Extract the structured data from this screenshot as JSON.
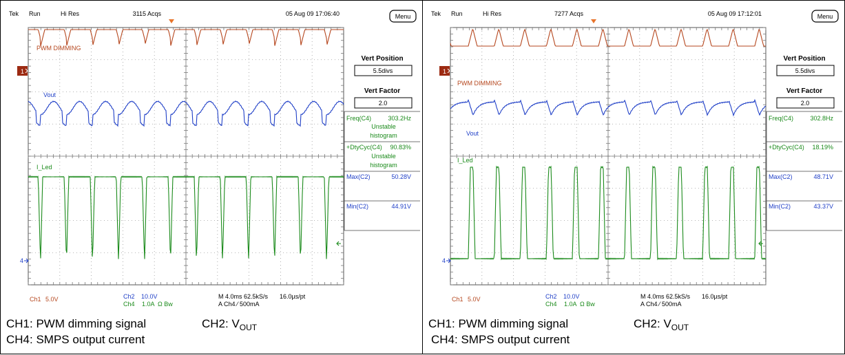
{
  "panels": [
    {
      "header": {
        "brand": "Tek",
        "mode": "Run",
        "acq_mode": "Hi Res",
        "acqs": "3115 Acqs",
        "datetime": "05 Aug 09 17:06:40"
      },
      "menu_label": "Menu",
      "side": {
        "vert_position_label": "Vert Position",
        "vert_position_value": "5.5divs",
        "vert_factor_label": "Vert Factor",
        "vert_factor_value": "2.0",
        "freq_label": "Freq(C4)",
        "freq_value": "303.2Hz",
        "freq_note1": "Unstable",
        "freq_note2": "histogram",
        "duty_label": "+DtyCyc(C4)",
        "duty_value": "90.83%",
        "duty_note1": "Unstable",
        "duty_note2": "histogram",
        "max_label": "Max(C2)",
        "max_value": "50.28V",
        "min_label": "Min(C2)",
        "min_value": "44.91V"
      },
      "trace_labels": {
        "pwm": "PWM DIMMING",
        "vout": "Vout",
        "iled": "I_Led"
      },
      "channel_markers": {
        "ch1": "1",
        "ch4": "4"
      },
      "footer": {
        "ch1": "Ch1",
        "ch1_scale": "5.0V",
        "ch2": "Ch2",
        "ch2_scale": "10.0V",
        "ch4": "Ch4",
        "ch4_scale": "1.0A",
        "bw": "Ω Bw",
        "timebase": "M 4.0ms 62.5kS/s",
        "resolution": "16.0µs/pt",
        "trigger": "A  Ch4  ⁄  500mA"
      },
      "caption": {
        "line1a": "CH1: PWM dimming signal",
        "line1b_prefix": "CH2: V",
        "line1b_sub": "OUT",
        "line2": "CH4: SMPS output current"
      }
    },
    {
      "header": {
        "brand": "Tek",
        "mode": "Run",
        "acq_mode": "Hi Res",
        "acqs": "7277 Acqs",
        "datetime": "05 Aug 09 17:12:01"
      },
      "menu_label": "Menu",
      "side": {
        "vert_position_label": "Vert Position",
        "vert_position_value": "5.5divs",
        "vert_factor_label": "Vert Factor",
        "vert_factor_value": "2.0",
        "freq_label": "Freq(C4)",
        "freq_value": "302.8Hz",
        "freq_note1": "",
        "freq_note2": "",
        "duty_label": "+DtyCyc(C4)",
        "duty_value": "18.19%",
        "duty_note1": "",
        "duty_note2": "",
        "max_label": "Max(C2)",
        "max_value": "48.71V",
        "min_label": "Min(C2)",
        "min_value": "43.37V"
      },
      "trace_labels": {
        "pwm": "PWM DIMMING",
        "vout": "Vout",
        "iled": "I_Led"
      },
      "channel_markers": {
        "ch1": "1",
        "ch4": "4"
      },
      "footer": {
        "ch1": "Ch1",
        "ch1_scale": "5.0V",
        "ch2": "Ch2",
        "ch2_scale": "10.0V",
        "ch4": "Ch4",
        "ch4_scale": "1.0A",
        "bw": "Ω Bw",
        "timebase": "M 4.0ms 62.5kS/s",
        "resolution": "16.0µs/pt",
        "trigger": "A  Ch4  ⁄  500mA"
      },
      "caption": {
        "line1a": "CH1: PWM dimming signal",
        "line1b_prefix": "CH2: V",
        "line1b_sub": "OUT",
        "line2": "CH4: SMPS output current"
      }
    }
  ],
  "colors": {
    "ch1": "#b5461d",
    "ch2": "#1f3fc7",
    "ch4": "#1a8a1a",
    "grid": "#9a9a9a",
    "frame": "#000000"
  },
  "chart_data": [
    {
      "type": "line",
      "title": "",
      "x_divisions": 10,
      "y_divisions": 8,
      "series": [
        {
          "channel": "Ch1",
          "name": "PWM DIMMING",
          "shape": "square",
          "frequency_hz": 303.2,
          "duty_cycle_pct": 90.83
        },
        {
          "channel": "Ch2",
          "name": "Vout",
          "shape": "ripple",
          "max_v": 50.28,
          "min_v": 44.91
        },
        {
          "channel": "Ch4",
          "name": "I_Led",
          "shape": "square",
          "frequency_hz": 303.2,
          "duty_cycle_pct": 90.83
        }
      ]
    },
    {
      "type": "line",
      "title": "",
      "x_divisions": 10,
      "y_divisions": 8,
      "series": [
        {
          "channel": "Ch1",
          "name": "PWM DIMMING",
          "shape": "square",
          "frequency_hz": 302.8,
          "duty_cycle_pct": 18.19
        },
        {
          "channel": "Ch2",
          "name": "Vout",
          "shape": "ripple",
          "max_v": 48.71,
          "min_v": 43.37
        },
        {
          "channel": "Ch4",
          "name": "I_Led",
          "shape": "square",
          "frequency_hz": 302.8,
          "duty_cycle_pct": 18.19
        }
      ]
    }
  ]
}
